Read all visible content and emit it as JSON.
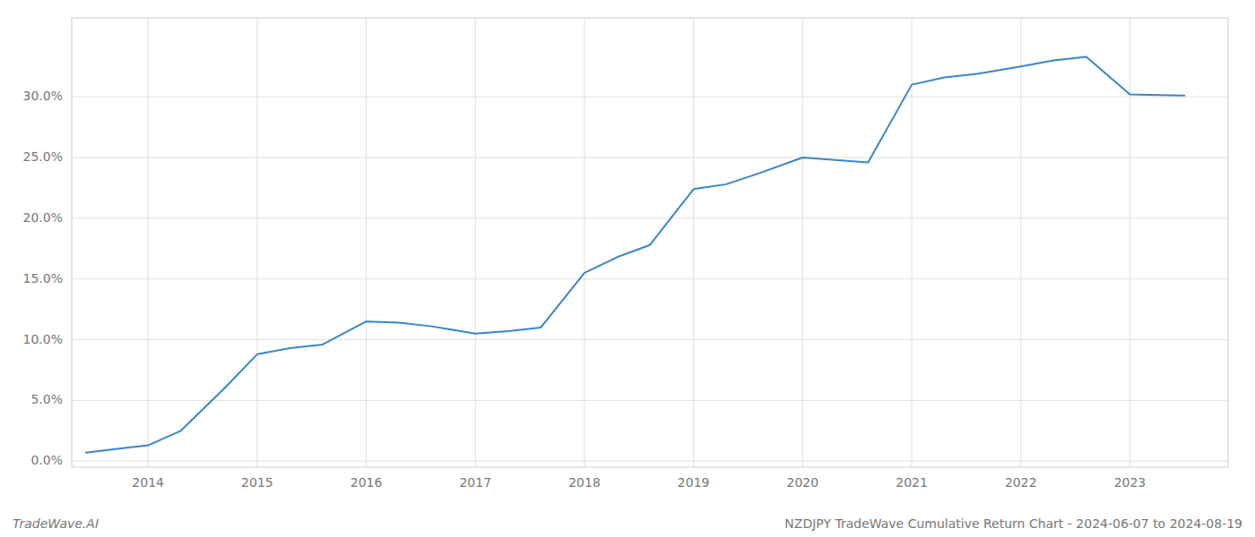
{
  "chart_data": {
    "type": "line",
    "title": "NZDJPY TradeWave Cumulative Return Chart - 2024-06-07 to 2024-08-19",
    "annotations": [
      "TradeWave.AI"
    ],
    "x": [
      2013.43,
      2013.7,
      2014.0,
      2014.3,
      2014.7,
      2015.0,
      2015.3,
      2015.6,
      2016.0,
      2016.3,
      2016.6,
      2017.0,
      2017.3,
      2017.6,
      2018.0,
      2018.3,
      2018.6,
      2019.0,
      2019.3,
      2019.6,
      2020.0,
      2020.3,
      2020.6,
      2021.0,
      2021.3,
      2021.6,
      2022.0,
      2022.3,
      2022.6,
      2023.0,
      2023.5
    ],
    "values": [
      0.007,
      0.01,
      0.013,
      0.025,
      0.06,
      0.088,
      0.093,
      0.096,
      0.115,
      0.114,
      0.111,
      0.105,
      0.107,
      0.11,
      0.155,
      0.168,
      0.178,
      0.224,
      0.228,
      0.237,
      0.25,
      0.248,
      0.246,
      0.31,
      0.316,
      0.319,
      0.325,
      0.33,
      0.333,
      0.302,
      0.301
    ],
    "color": "#3a86c8",
    "xlim": [
      2013.3,
      2023.9
    ],
    "ylim": [
      -0.005,
      0.365
    ],
    "xticks": [
      2014,
      2015,
      2016,
      2017,
      2018,
      2019,
      2020,
      2021,
      2022,
      2023
    ],
    "yticks": [
      {
        "value": 0.0,
        "label": "0.0%"
      },
      {
        "value": 0.05,
        "label": "5.0%"
      },
      {
        "value": 0.1,
        "label": "10.0%"
      },
      {
        "value": 0.15,
        "label": "15.0%"
      },
      {
        "value": 0.2,
        "label": "20.0%"
      },
      {
        "value": 0.25,
        "label": "25.0%"
      },
      {
        "value": 0.3,
        "label": "30.0%"
      }
    ],
    "grid": true
  }
}
